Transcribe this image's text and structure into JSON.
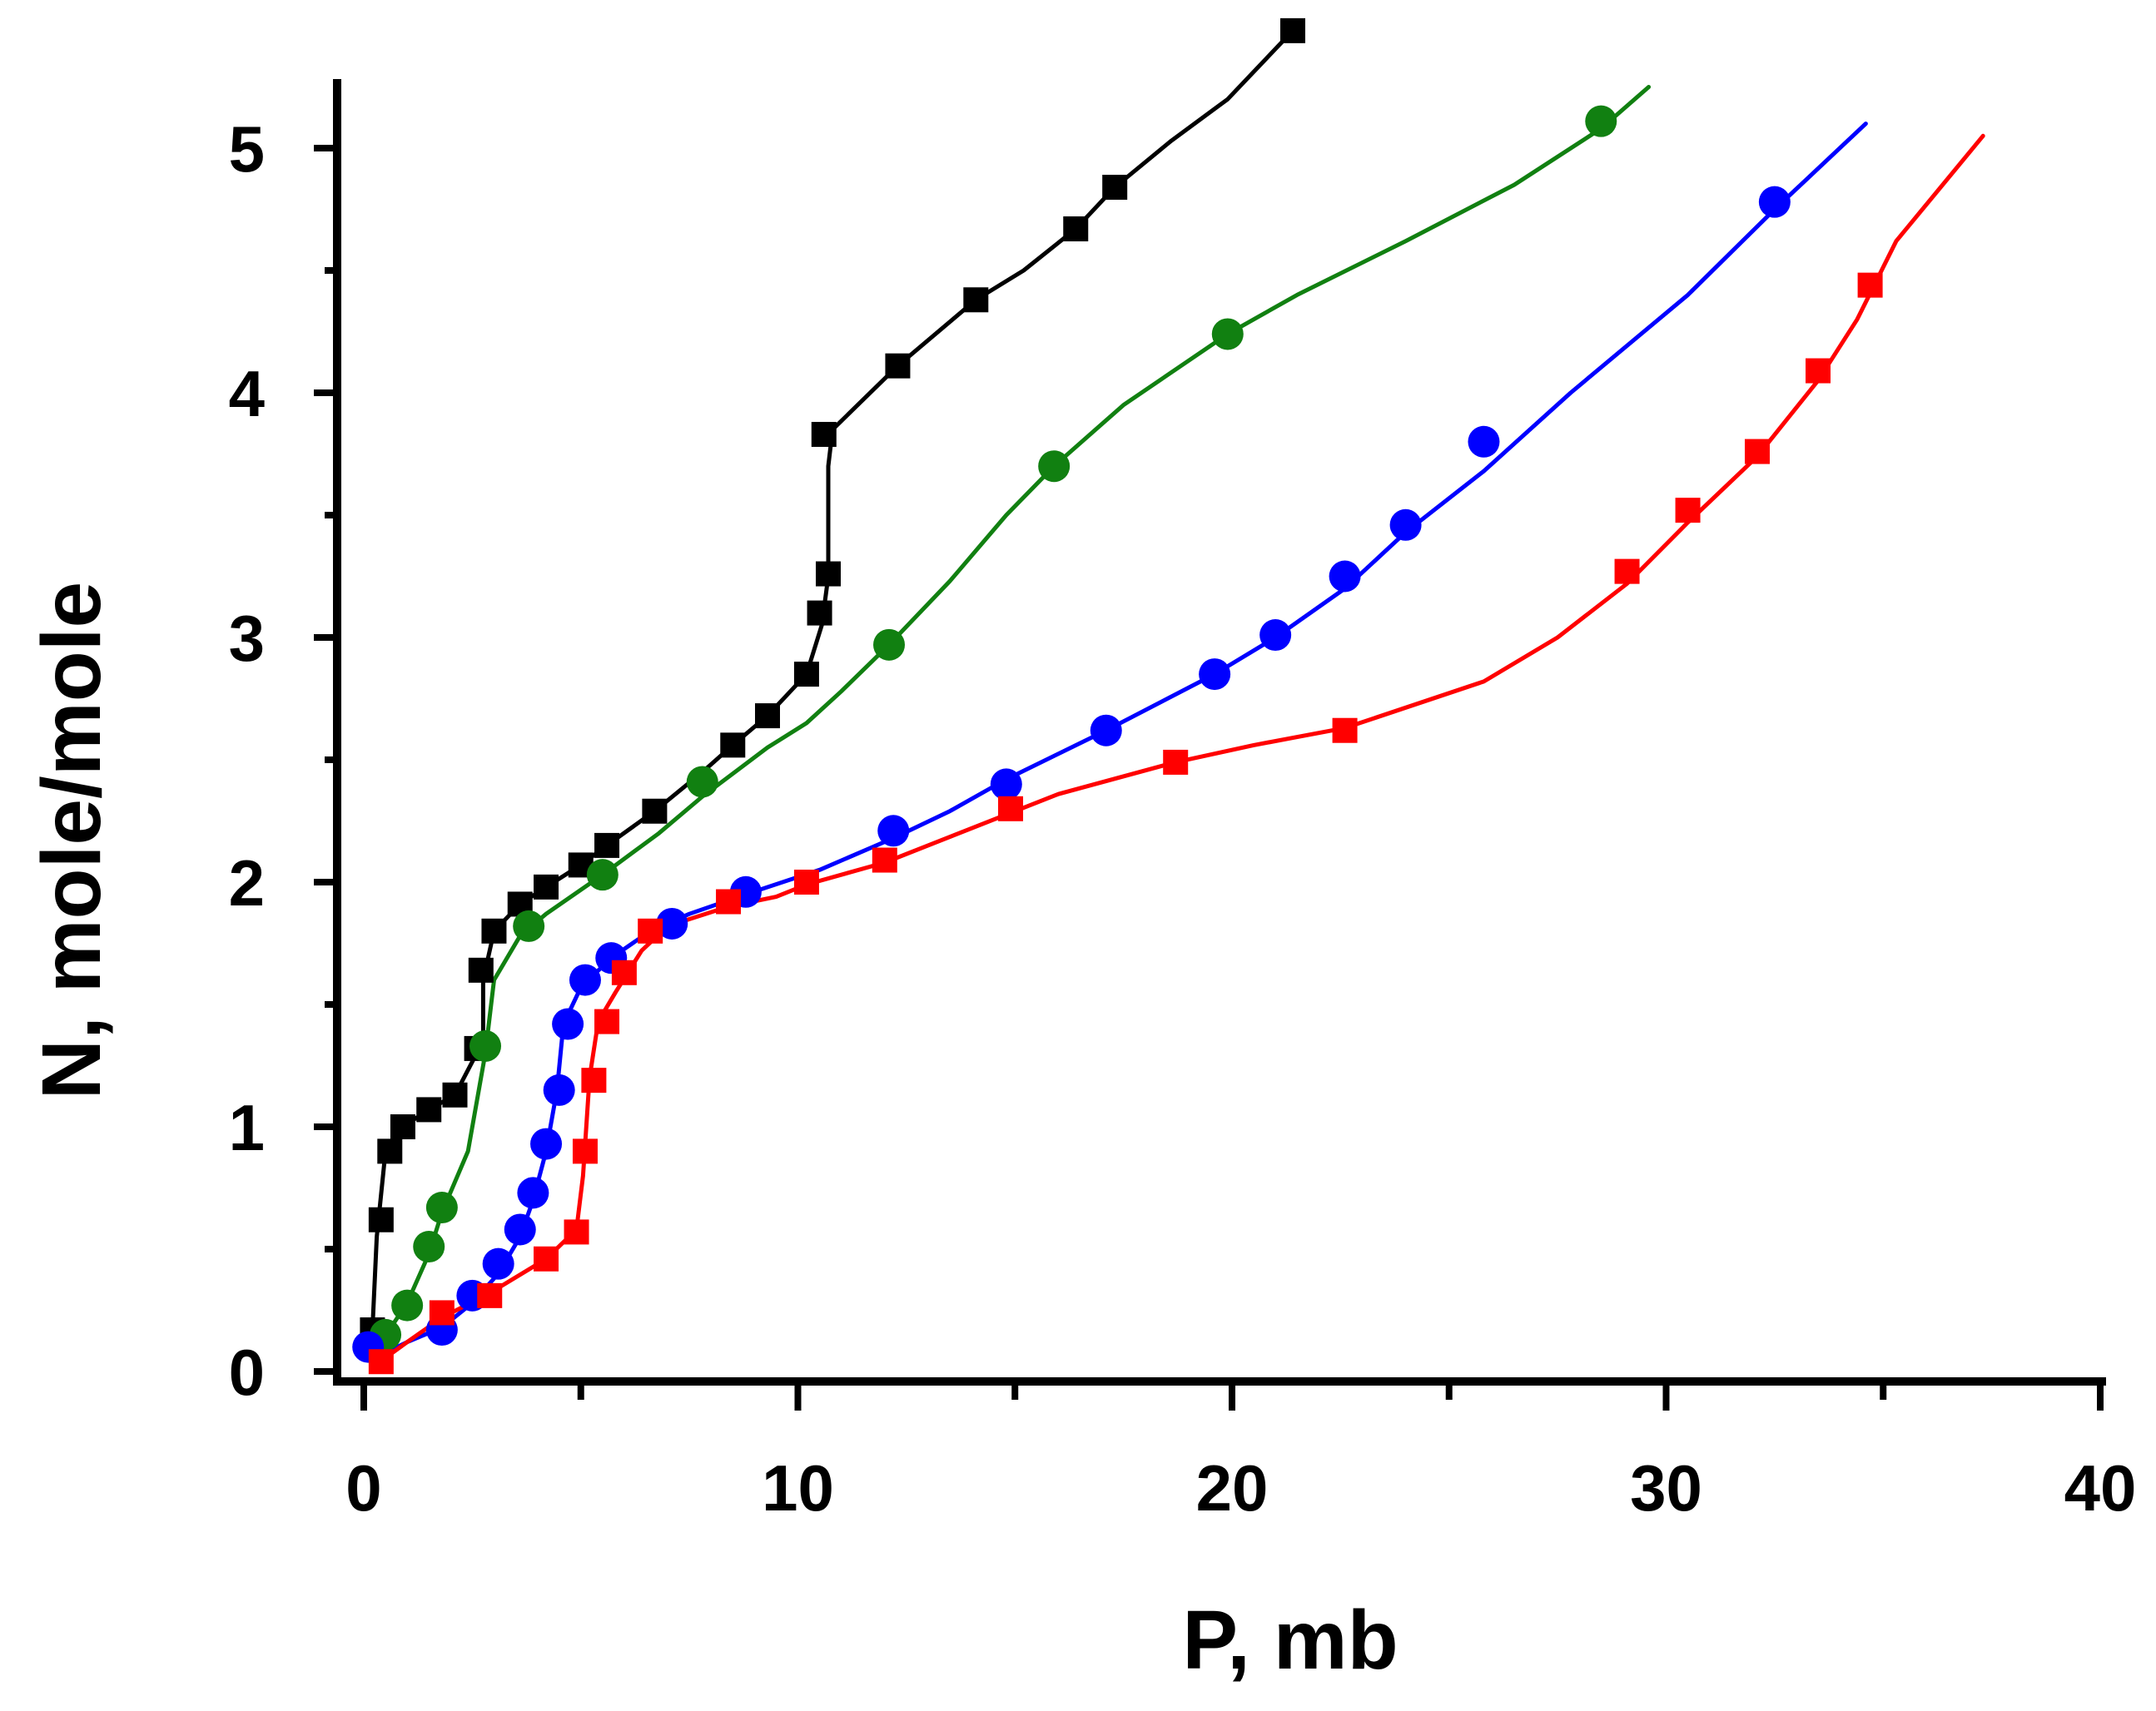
{
  "chart_data": {
    "type": "line",
    "xlabel": "P, mb",
    "ylabel": "N, mole/mole",
    "xlim": [
      0,
      40
    ],
    "ylim": [
      0,
      5.4
    ],
    "xticks": [
      0,
      10,
      20,
      30,
      40
    ],
    "xtick_labels": [
      "0",
      "10",
      "20",
      "30",
      "40"
    ],
    "yticks": [
      0,
      1,
      2,
      3,
      4,
      5
    ],
    "ytick_labels": [
      "0",
      "1",
      "2",
      "3",
      "4",
      "5"
    ],
    "series": [
      {
        "name": "black",
        "color": "#000000",
        "marker": "square",
        "points": [
          [
            0.2,
            0.17
          ],
          [
            0.4,
            0.62
          ],
          [
            0.6,
            0.9
          ],
          [
            0.9,
            1.0
          ],
          [
            1.5,
            1.07
          ],
          [
            2.1,
            1.13
          ],
          [
            2.6,
            1.32
          ],
          [
            2.7,
            1.64
          ],
          [
            3.0,
            1.8
          ],
          [
            3.6,
            1.91
          ],
          [
            4.2,
            1.98
          ],
          [
            5.0,
            2.07
          ],
          [
            5.6,
            2.15
          ],
          [
            6.7,
            2.29
          ],
          [
            8.5,
            2.56
          ],
          [
            9.3,
            2.68
          ],
          [
            10.2,
            2.85
          ],
          [
            10.5,
            3.1
          ],
          [
            10.7,
            3.26
          ],
          [
            10.6,
            3.83
          ],
          [
            12.3,
            4.11
          ],
          [
            14.1,
            4.38
          ],
          [
            16.4,
            4.67
          ],
          [
            17.3,
            4.84
          ],
          [
            21.4,
            5.48
          ]
        ],
        "curve": [
          [
            0.2,
            0.17
          ],
          [
            0.3,
            0.55
          ],
          [
            0.5,
            0.9
          ],
          [
            0.9,
            1.0
          ],
          [
            1.5,
            1.07
          ],
          [
            2.1,
            1.13
          ],
          [
            2.6,
            1.3
          ],
          [
            2.75,
            1.35
          ],
          [
            2.75,
            1.6
          ],
          [
            3.0,
            1.8
          ],
          [
            3.6,
            1.91
          ],
          [
            4.2,
            1.98
          ],
          [
            5.0,
            2.07
          ],
          [
            5.6,
            2.15
          ],
          [
            6.7,
            2.29
          ],
          [
            7.8,
            2.45
          ],
          [
            8.5,
            2.56
          ],
          [
            9.3,
            2.68
          ],
          [
            10.2,
            2.85
          ],
          [
            10.55,
            3.05
          ],
          [
            10.7,
            3.25
          ],
          [
            10.7,
            3.7
          ],
          [
            10.8,
            3.85
          ],
          [
            12.3,
            4.11
          ],
          [
            14.1,
            4.38
          ],
          [
            15.2,
            4.5
          ],
          [
            16.4,
            4.67
          ],
          [
            17.3,
            4.84
          ],
          [
            18.6,
            5.03
          ],
          [
            19.9,
            5.2
          ],
          [
            21.4,
            5.48
          ]
        ]
      },
      {
        "name": "green",
        "color": "#118011",
        "marker": "circle",
        "points": [
          [
            0.5,
            0.15
          ],
          [
            1.0,
            0.27
          ],
          [
            1.5,
            0.51
          ],
          [
            1.8,
            0.67
          ],
          [
            2.8,
            1.33
          ],
          [
            3.8,
            1.82
          ],
          [
            5.5,
            2.03
          ],
          [
            7.8,
            2.41
          ],
          [
            12.1,
            2.97
          ],
          [
            15.9,
            3.7
          ],
          [
            19.9,
            4.24
          ],
          [
            28.5,
            5.11
          ]
        ],
        "curve": [
          [
            0.4,
            0.12
          ],
          [
            1.0,
            0.28
          ],
          [
            1.5,
            0.48
          ],
          [
            1.8,
            0.65
          ],
          [
            2.4,
            0.9
          ],
          [
            2.8,
            1.3
          ],
          [
            3.0,
            1.6
          ],
          [
            3.6,
            1.78
          ],
          [
            4.2,
            1.87
          ],
          [
            5.5,
            2.03
          ],
          [
            6.8,
            2.2
          ],
          [
            7.8,
            2.35
          ],
          [
            9.3,
            2.55
          ],
          [
            10.2,
            2.65
          ],
          [
            11.0,
            2.78
          ],
          [
            12.1,
            2.97
          ],
          [
            13.5,
            3.23
          ],
          [
            14.8,
            3.5
          ],
          [
            15.9,
            3.7
          ],
          [
            17.5,
            3.95
          ],
          [
            19.9,
            4.24
          ],
          [
            21.5,
            4.4
          ],
          [
            24.0,
            4.62
          ],
          [
            26.5,
            4.85
          ],
          [
            28.5,
            5.08
          ],
          [
            29.6,
            5.25
          ]
        ]
      },
      {
        "name": "blue",
        "color": "#0000ff",
        "marker": "circle",
        "points": [
          [
            0.1,
            0.1
          ],
          [
            1.8,
            0.17
          ],
          [
            2.5,
            0.31
          ],
          [
            3.1,
            0.44
          ],
          [
            3.6,
            0.58
          ],
          [
            3.9,
            0.73
          ],
          [
            4.2,
            0.93
          ],
          [
            4.5,
            1.15
          ],
          [
            4.7,
            1.42
          ],
          [
            5.1,
            1.6
          ],
          [
            5.7,
            1.69
          ],
          [
            7.1,
            1.83
          ],
          [
            8.8,
            1.96
          ],
          [
            12.2,
            2.21
          ],
          [
            14.8,
            2.4
          ],
          [
            17.1,
            2.62
          ],
          [
            19.6,
            2.85
          ],
          [
            21.0,
            3.01
          ],
          [
            22.6,
            3.25
          ],
          [
            24.0,
            3.46
          ],
          [
            25.8,
            3.8
          ],
          [
            32.5,
            4.78
          ]
        ],
        "curve": [
          [
            0.2,
            0.05
          ],
          [
            1.0,
            0.12
          ],
          [
            1.8,
            0.18
          ],
          [
            2.5,
            0.28
          ],
          [
            3.1,
            0.4
          ],
          [
            3.6,
            0.55
          ],
          [
            3.9,
            0.7
          ],
          [
            4.2,
            0.9
          ],
          [
            4.45,
            1.15
          ],
          [
            4.6,
            1.42
          ],
          [
            5.0,
            1.57
          ],
          [
            5.7,
            1.69
          ],
          [
            6.6,
            1.8
          ],
          [
            7.5,
            1.87
          ],
          [
            8.8,
            1.95
          ],
          [
            10.5,
            2.05
          ],
          [
            12.2,
            2.18
          ],
          [
            13.5,
            2.29
          ],
          [
            14.8,
            2.42
          ],
          [
            17.1,
            2.62
          ],
          [
            19.6,
            2.85
          ],
          [
            21.0,
            3.0
          ],
          [
            22.6,
            3.2
          ],
          [
            24.0,
            3.43
          ],
          [
            25.8,
            3.68
          ],
          [
            27.8,
            4.0
          ],
          [
            30.5,
            4.4
          ],
          [
            32.5,
            4.75
          ],
          [
            34.6,
            5.1
          ]
        ]
      },
      {
        "name": "red",
        "color": "#ff0000",
        "marker": "square",
        "points": [
          [
            0.4,
            0.04
          ],
          [
            1.8,
            0.24
          ],
          [
            2.9,
            0.31
          ],
          [
            4.2,
            0.46
          ],
          [
            4.9,
            0.57
          ],
          [
            5.1,
            0.9
          ],
          [
            5.3,
            1.19
          ],
          [
            5.6,
            1.43
          ],
          [
            6.0,
            1.63
          ],
          [
            6.6,
            1.8
          ],
          [
            8.4,
            1.92
          ],
          [
            10.2,
            2.0
          ],
          [
            12.0,
            2.09
          ],
          [
            14.9,
            2.3
          ],
          [
            18.7,
            2.49
          ],
          [
            22.6,
            2.62
          ],
          [
            29.1,
            3.27
          ],
          [
            30.5,
            3.52
          ],
          [
            32.1,
            3.76
          ],
          [
            33.5,
            4.09
          ],
          [
            34.7,
            4.44
          ]
        ],
        "curve": [
          [
            0.3,
            0.03
          ],
          [
            1.0,
            0.12
          ],
          [
            1.8,
            0.22
          ],
          [
            2.9,
            0.32
          ],
          [
            4.2,
            0.46
          ],
          [
            4.9,
            0.58
          ],
          [
            5.05,
            0.8
          ],
          [
            5.2,
            1.2
          ],
          [
            5.4,
            1.43
          ],
          [
            5.8,
            1.55
          ],
          [
            6.4,
            1.72
          ],
          [
            7.0,
            1.82
          ],
          [
            8.4,
            1.9
          ],
          [
            9.5,
            1.94
          ],
          [
            10.2,
            1.99
          ],
          [
            12.0,
            2.08
          ],
          [
            14.0,
            2.22
          ],
          [
            16.0,
            2.36
          ],
          [
            18.7,
            2.49
          ],
          [
            20.5,
            2.56
          ],
          [
            22.6,
            2.63
          ],
          [
            25.8,
            2.82
          ],
          [
            27.5,
            3.0
          ],
          [
            29.1,
            3.22
          ],
          [
            30.5,
            3.47
          ],
          [
            32.1,
            3.74
          ],
          [
            33.5,
            4.05
          ],
          [
            34.4,
            4.3
          ],
          [
            35.3,
            4.62
          ],
          [
            37.3,
            5.05
          ]
        ]
      }
    ]
  }
}
